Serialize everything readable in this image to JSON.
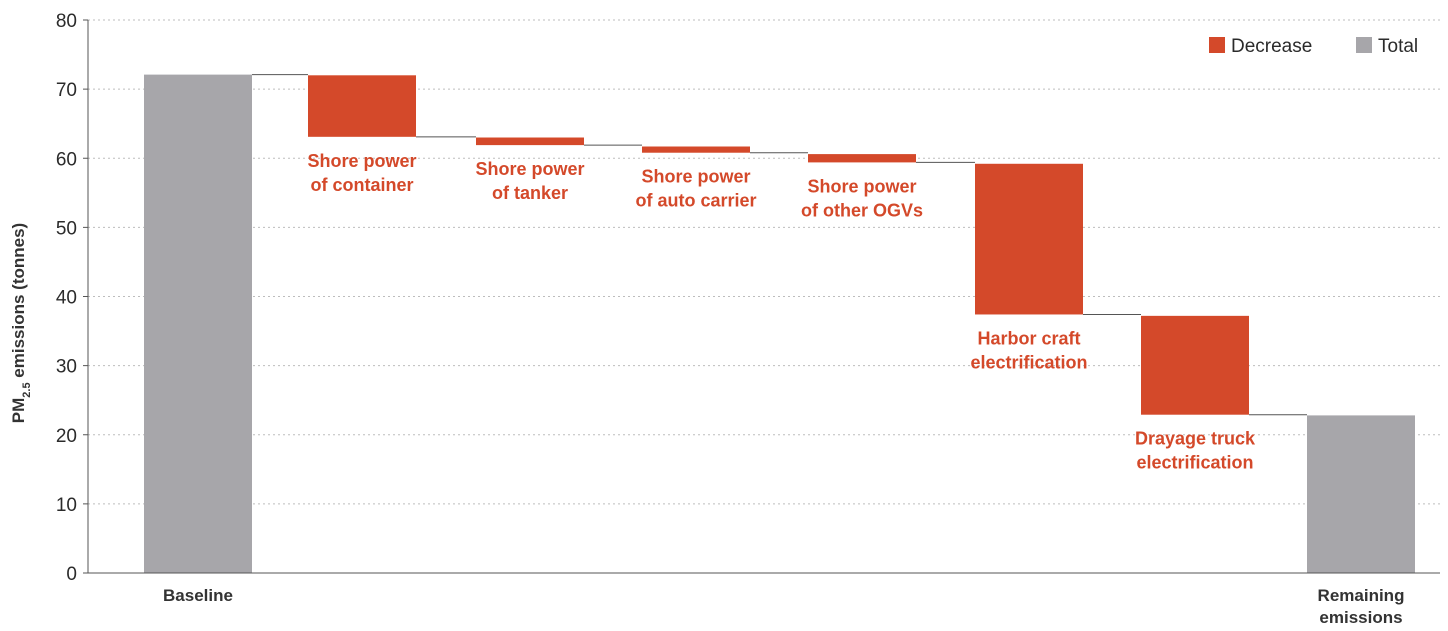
{
  "chart_data": {
    "type": "bar",
    "subtype": "waterfall",
    "ylabel": "PM2.5 emissions (tonnes)",
    "ylabel_main": "PM",
    "ylabel_sub": "2.5",
    "ylabel_rest": " emissions (tonnes)",
    "ylim": [
      0,
      80
    ],
    "yticks": [
      0,
      10,
      20,
      30,
      40,
      50,
      60,
      70,
      80
    ],
    "grid": true,
    "legend": {
      "position": "top-right",
      "items": [
        {
          "label": "Decrease",
          "color": "#d4492a"
        },
        {
          "label": "Total",
          "color": "#a7a6aa"
        }
      ]
    },
    "bars": [
      {
        "kind": "total",
        "start": 0,
        "end": 72.1,
        "label": [
          "Baseline"
        ],
        "label_pos": "below-axis"
      },
      {
        "kind": "decrease",
        "start": 72.0,
        "end": 63.1,
        "label": [
          "Shore power",
          "of container"
        ],
        "label_pos": "below-bar"
      },
      {
        "kind": "decrease",
        "start": 63.0,
        "end": 61.9,
        "label": [
          "Shore power",
          "of tanker"
        ],
        "label_pos": "below-bar"
      },
      {
        "kind": "decrease",
        "start": 61.7,
        "end": 60.8,
        "label": [
          "Shore power",
          "of auto carrier"
        ],
        "label_pos": "below-bar"
      },
      {
        "kind": "decrease",
        "start": 60.6,
        "end": 59.4,
        "label": [
          "Shore power",
          "of other OGVs"
        ],
        "label_pos": "below-bar"
      },
      {
        "kind": "decrease",
        "start": 59.2,
        "end": 37.4,
        "label": [
          "Harbor craft",
          "electrification"
        ],
        "label_pos": "below-bar"
      },
      {
        "kind": "decrease",
        "start": 37.2,
        "end": 22.9,
        "label": [
          "Drayage truck",
          "electrification"
        ],
        "label_pos": "below-bar"
      },
      {
        "kind": "total",
        "start": 0,
        "end": 22.8,
        "label": [
          "Remaining",
          "emissions"
        ],
        "label_pos": "below-axis"
      }
    ],
    "colors": {
      "decrease": "#d4492a",
      "total": "#a7a6aa",
      "axis": "#555555",
      "grid": "#bdbdbd",
      "connector": "#555555"
    }
  }
}
